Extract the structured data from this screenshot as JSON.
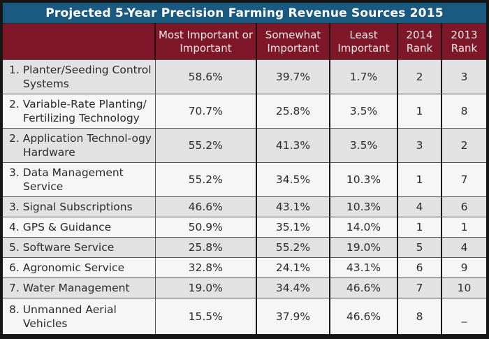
{
  "title": "Projected 5-Year Precision Farming Revenue Sources 2015",
  "colors": {
    "title_bg": "#1b5a80",
    "header_bg": "#7e1828",
    "row_alt": "#e2e2e3",
    "row_base": "#f6f6f6",
    "frame": "#161616"
  },
  "headers": [
    "",
    "Most Important or Important",
    "Somewhat Important",
    "Least Important",
    "2014 Rank",
    "2013 Rank"
  ],
  "rows": [
    {
      "label": "1. Planter/Seeding Control Systems",
      "most": "58.6%",
      "somewhat": "39.7%",
      "least": "1.7%",
      "rank2014": "2",
      "rank2013": "3"
    },
    {
      "label": "2. Variable-Rate Planting/ Fertilizing Technology",
      "most": "70.7%",
      "somewhat": "25.8%",
      "least": "3.5%",
      "rank2014": "1",
      "rank2013": "8"
    },
    {
      "label": "2. Application Technol-ogy Hardware",
      "most": "55.2%",
      "somewhat": "41.3%",
      "least": "3.5%",
      "rank2014": "3",
      "rank2013": "2"
    },
    {
      "label": "3. Data Management Service",
      "most": "55.2%",
      "somewhat": "34.5%",
      "least": "10.3%",
      "rank2014": "1",
      "rank2013": "7"
    },
    {
      "label": "3. Signal Subscriptions",
      "most": "46.6%",
      "somewhat": "43.1%",
      "least": "10.3%",
      "rank2014": "4",
      "rank2013": "6"
    },
    {
      "label": "4. GPS & Guidance",
      "most": "50.9%",
      "somewhat": "35.1%",
      "least": "14.0%",
      "rank2014": "1",
      "rank2013": "1"
    },
    {
      "label": "5. Software Service",
      "most": "25.8%",
      "somewhat": "55.2%",
      "least": "19.0%",
      "rank2014": "5",
      "rank2013": "4"
    },
    {
      "label": "6. Agronomic Service",
      "most": "32.8%",
      "somewhat": "24.1%",
      "least": "43.1%",
      "rank2014": "6",
      "rank2013": "9"
    },
    {
      "label": "7. Water Management",
      "most": "19.0%",
      "somewhat": "34.4%",
      "least": "46.6%",
      "rank2014": "7",
      "rank2013": "10"
    },
    {
      "label": "8. Unmanned Aerial Vehicles",
      "most": "15.5%",
      "somewhat": "37.9%",
      "least": "46.6%",
      "rank2014": "8",
      "rank2013": "_"
    }
  ]
}
